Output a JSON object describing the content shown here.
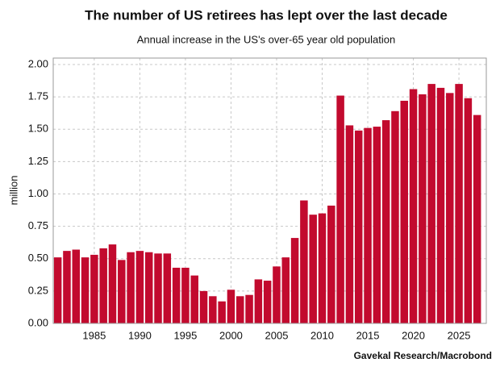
{
  "chart_data": {
    "type": "bar",
    "title": "The number of US retirees has lept over the last decade",
    "subtitle": "Annual increase in the US's over-65 year old population",
    "y_label": "million",
    "source": "Gavekal Research/Macrobond",
    "color": "#c20a2e",
    "grid": true,
    "x": [
      1981,
      1982,
      1983,
      1984,
      1985,
      1986,
      1987,
      1988,
      1989,
      1990,
      1991,
      1992,
      1993,
      1994,
      1995,
      1996,
      1997,
      1998,
      1999,
      2000,
      2001,
      2002,
      2003,
      2004,
      2005,
      2006,
      2007,
      2008,
      2009,
      2010,
      2011,
      2012,
      2013,
      2014,
      2015,
      2016,
      2017,
      2018,
      2019,
      2020,
      2021,
      2022,
      2023,
      2024,
      2025,
      2026,
      2027
    ],
    "values": [
      0.51,
      0.56,
      0.57,
      0.51,
      0.53,
      0.58,
      0.61,
      0.49,
      0.55,
      0.56,
      0.55,
      0.54,
      0.54,
      0.43,
      0.43,
      0.37,
      0.25,
      0.21,
      0.17,
      0.26,
      0.21,
      0.22,
      0.34,
      0.33,
      0.44,
      0.51,
      0.66,
      0.95,
      0.84,
      0.85,
      0.91,
      1.76,
      1.53,
      1.49,
      1.51,
      1.52,
      1.57,
      1.64,
      1.72,
      1.81,
      1.77,
      1.85,
      1.82,
      1.78,
      1.85,
      1.74,
      1.61
    ],
    "xlim": [
      1980.5,
      2028
    ],
    "xticks": [
      1985,
      1990,
      1995,
      2000,
      2005,
      2010,
      2015,
      2020,
      2025
    ],
    "ylim": [
      0,
      2.05
    ],
    "yticks": [
      {
        "value": 0,
        "label": "0.00"
      },
      {
        "value": 0.25,
        "label": "0.25"
      },
      {
        "value": 0.5,
        "label": "0.50"
      },
      {
        "value": 0.75,
        "label": "0.75"
      },
      {
        "value": 1,
        "label": "1.00"
      },
      {
        "value": 1.25,
        "label": "1.25"
      },
      {
        "value": 1.5,
        "label": "1.50"
      },
      {
        "value": 1.75,
        "label": "1.75"
      },
      {
        "value": 2,
        "label": "2.00"
      }
    ]
  }
}
